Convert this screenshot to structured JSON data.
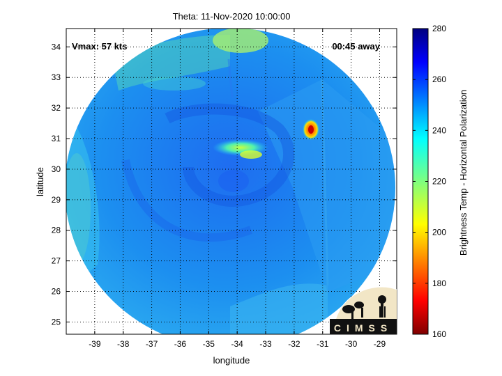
{
  "title": "Theta: 11-Nov-2020 10:00:00",
  "xlabel": "longitude",
  "ylabel": "latitude",
  "annotations": {
    "vmax": "Vmax: 57 kts",
    "away": "00:45 away"
  },
  "colorbar": {
    "label": "Brightness Temp - Horizontal Polarization",
    "ticks": [
      "280",
      "260",
      "240",
      "220",
      "200",
      "180",
      "160"
    ],
    "range": [
      160,
      280
    ],
    "colormap": "jet"
  },
  "logo_text": "CIMSS",
  "chart_data": {
    "type": "heatmap",
    "title": "Theta: 11-Nov-2020 10:00:00",
    "xlabel": "longitude",
    "ylabel": "latitude",
    "xlim": [
      -40,
      -28.4
    ],
    "ylim": [
      24.6,
      34.6
    ],
    "xticks": [
      "-39",
      "-38",
      "-37",
      "-36",
      "-35",
      "-34",
      "-33",
      "-32",
      "-31",
      "-30",
      "-29"
    ],
    "yticks": [
      "34",
      "33",
      "32",
      "31",
      "30",
      "29",
      "28",
      "27",
      "26",
      "25"
    ],
    "grid": true,
    "value_range": [
      160,
      280
    ],
    "center": {
      "lon": -34.2,
      "lat": 29.7
    },
    "features": [
      {
        "desc": "background field",
        "value": 245
      },
      {
        "desc": "warm band north-west",
        "value": 238
      },
      {
        "desc": "cold spot",
        "lon": -31.3,
        "lat": 31.2,
        "value": 175
      },
      {
        "desc": "warm arc north of center",
        "lon": -34.3,
        "lat": 30.7,
        "value": 230
      }
    ]
  }
}
